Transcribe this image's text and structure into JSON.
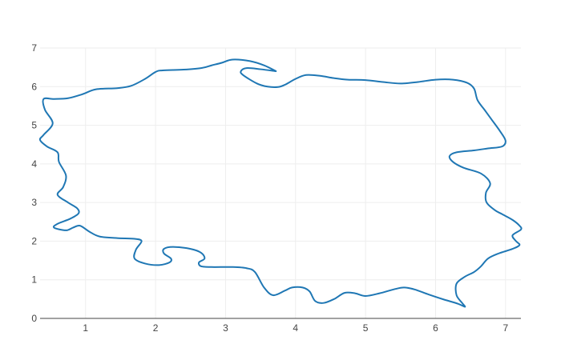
{
  "chart_data": {
    "type": "line",
    "title": "",
    "xlabel": "",
    "ylabel": "",
    "xlim": [
      0.35,
      7.22
    ],
    "ylim": [
      0,
      7
    ],
    "x_ticks": [
      "1",
      "2",
      "3",
      "4",
      "5",
      "6",
      "7"
    ],
    "y_ticks": [
      "0",
      "1",
      "2",
      "3",
      "4",
      "5",
      "6",
      "7"
    ],
    "grid": true,
    "series": [
      {
        "color": "#1f77b4",
        "points": [
          [
            3.72,
            6.4
          ],
          [
            3.55,
            6.55
          ],
          [
            3.35,
            6.66
          ],
          [
            3.1,
            6.7
          ],
          [
            2.95,
            6.62
          ],
          [
            2.8,
            6.55
          ],
          [
            2.65,
            6.48
          ],
          [
            2.4,
            6.44
          ],
          [
            2.1,
            6.42
          ],
          [
            2.0,
            6.38
          ],
          [
            1.85,
            6.2
          ],
          [
            1.65,
            6.02
          ],
          [
            1.45,
            5.96
          ],
          [
            1.15,
            5.93
          ],
          [
            0.95,
            5.8
          ],
          [
            0.75,
            5.7
          ],
          [
            0.55,
            5.68
          ],
          [
            0.4,
            5.68
          ],
          [
            0.42,
            5.4
          ],
          [
            0.53,
            5.05
          ],
          [
            0.4,
            4.75
          ],
          [
            0.35,
            4.62
          ],
          [
            0.45,
            4.45
          ],
          [
            0.6,
            4.3
          ],
          [
            0.62,
            4.05
          ],
          [
            0.72,
            3.7
          ],
          [
            0.68,
            3.4
          ],
          [
            0.6,
            3.2
          ],
          [
            0.75,
            3.0
          ],
          [
            0.88,
            2.85
          ],
          [
            0.9,
            2.72
          ],
          [
            0.78,
            2.58
          ],
          [
            0.6,
            2.45
          ],
          [
            0.55,
            2.35
          ],
          [
            0.72,
            2.28
          ],
          [
            0.82,
            2.35
          ],
          [
            0.92,
            2.4
          ],
          [
            1.05,
            2.25
          ],
          [
            1.2,
            2.12
          ],
          [
            1.45,
            2.08
          ],
          [
            1.7,
            2.06
          ],
          [
            1.8,
            2.0
          ],
          [
            1.72,
            1.78
          ],
          [
            1.7,
            1.55
          ],
          [
            1.85,
            1.42
          ],
          [
            2.05,
            1.38
          ],
          [
            2.2,
            1.45
          ],
          [
            2.22,
            1.55
          ],
          [
            2.12,
            1.68
          ],
          [
            2.12,
            1.8
          ],
          [
            2.25,
            1.85
          ],
          [
            2.5,
            1.8
          ],
          [
            2.65,
            1.7
          ],
          [
            2.7,
            1.55
          ],
          [
            2.62,
            1.45
          ],
          [
            2.65,
            1.35
          ],
          [
            2.8,
            1.33
          ],
          [
            3.1,
            1.33
          ],
          [
            3.3,
            1.3
          ],
          [
            3.42,
            1.2
          ],
          [
            3.55,
            0.8
          ],
          [
            3.68,
            0.6
          ],
          [
            3.85,
            0.72
          ],
          [
            3.95,
            0.8
          ],
          [
            4.1,
            0.8
          ],
          [
            4.2,
            0.7
          ],
          [
            4.28,
            0.45
          ],
          [
            4.4,
            0.4
          ],
          [
            4.55,
            0.5
          ],
          [
            4.7,
            0.66
          ],
          [
            4.85,
            0.65
          ],
          [
            5.0,
            0.58
          ],
          [
            5.2,
            0.65
          ],
          [
            5.4,
            0.75
          ],
          [
            5.55,
            0.8
          ],
          [
            5.7,
            0.75
          ],
          [
            5.9,
            0.62
          ],
          [
            6.1,
            0.5
          ],
          [
            6.32,
            0.38
          ],
          [
            6.42,
            0.3
          ],
          [
            6.38,
            0.4
          ],
          [
            6.3,
            0.6
          ],
          [
            6.3,
            0.9
          ],
          [
            6.42,
            1.08
          ],
          [
            6.55,
            1.2
          ],
          [
            6.65,
            1.35
          ],
          [
            6.75,
            1.55
          ],
          [
            6.9,
            1.68
          ],
          [
            7.1,
            1.8
          ],
          [
            7.2,
            1.9
          ],
          [
            7.15,
            2.0
          ],
          [
            7.1,
            2.15
          ],
          [
            7.22,
            2.3
          ],
          [
            7.2,
            2.4
          ],
          [
            7.1,
            2.55
          ],
          [
            6.95,
            2.7
          ],
          [
            6.85,
            2.8
          ],
          [
            6.73,
            3.0
          ],
          [
            6.72,
            3.25
          ],
          [
            6.78,
            3.5
          ],
          [
            6.65,
            3.75
          ],
          [
            6.4,
            3.9
          ],
          [
            6.25,
            4.05
          ],
          [
            6.2,
            4.2
          ],
          [
            6.3,
            4.3
          ],
          [
            6.55,
            4.35
          ],
          [
            6.75,
            4.4
          ],
          [
            6.95,
            4.45
          ],
          [
            7.0,
            4.6
          ],
          [
            6.92,
            4.85
          ],
          [
            6.8,
            5.15
          ],
          [
            6.7,
            5.4
          ],
          [
            6.6,
            5.65
          ],
          [
            6.55,
            5.95
          ],
          [
            6.45,
            6.1
          ],
          [
            6.25,
            6.18
          ],
          [
            6.0,
            6.18
          ],
          [
            5.75,
            6.12
          ],
          [
            5.5,
            6.08
          ],
          [
            5.25,
            6.12
          ],
          [
            5.0,
            6.17
          ],
          [
            4.75,
            6.18
          ],
          [
            4.55,
            6.22
          ],
          [
            4.35,
            6.28
          ],
          [
            4.15,
            6.3
          ],
          [
            4.0,
            6.2
          ],
          [
            3.85,
            6.05
          ],
          [
            3.75,
            5.99
          ],
          [
            3.6,
            6.0
          ],
          [
            3.45,
            6.08
          ],
          [
            3.25,
            6.3
          ],
          [
            3.22,
            6.4
          ],
          [
            3.3,
            6.48
          ],
          [
            3.5,
            6.45
          ],
          [
            3.72,
            6.4
          ]
        ]
      }
    ]
  }
}
